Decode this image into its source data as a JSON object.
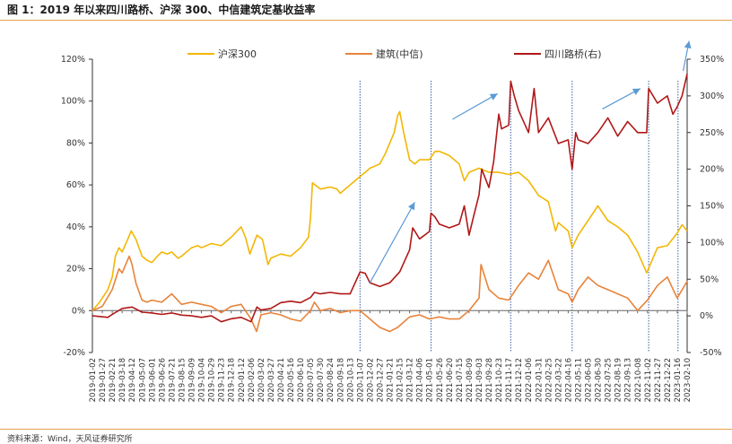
{
  "title": "图 1：2019 年以来四川路桥、沪深 300、中信建筑定基收益率",
  "source": "资料来源：Wind，天风证券研究所",
  "chart_data": {
    "type": "line",
    "title": "图 1：2019 年以来四川路桥、沪深 300、中信建筑定基收益率",
    "legend_position": "top",
    "grid": false,
    "y_left": {
      "ticks": [
        "-20%",
        "0%",
        "20%",
        "40%",
        "60%",
        "80%",
        "100%",
        "120%"
      ],
      "range": [
        -20,
        120
      ],
      "unit": "%"
    },
    "y_right": {
      "ticks": [
        "-50%",
        "0%",
        "50%",
        "100%",
        "150%",
        "200%",
        "250%",
        "300%",
        "350%"
      ],
      "range": [
        -50,
        350
      ],
      "unit": "%"
    },
    "x_labels": [
      "2019-01-02",
      "2019-01-27",
      "2019-02-21",
      "2019-03-18",
      "2019-04-12",
      "2019-05-07",
      "2019-06-01",
      "2019-06-26",
      "2019-07-21",
      "2019-08-15",
      "2019-09-09",
      "2019-10-04",
      "2019-10-29",
      "2019-11-23",
      "2019-12-18",
      "2020-01-12",
      "2020-02-06",
      "2020-03-02",
      "2020-03-27",
      "2020-04-21",
      "2020-05-16",
      "2020-06-10",
      "2020-07-05",
      "2020-07-30",
      "2020-08-24",
      "2020-09-18",
      "2020-10-13",
      "2020-11-07",
      "2020-12-02",
      "2020-12-27",
      "2021-01-21",
      "2021-02-15",
      "2021-03-12",
      "2021-04-06",
      "2021-05-01",
      "2021-05-26",
      "2021-06-20",
      "2021-07-15",
      "2021-08-09",
      "2021-09-03",
      "2021-09-28",
      "2021-10-23",
      "2021-11-17",
      "2021-12-12",
      "2022-01-06",
      "2022-01-31",
      "2022-02-25",
      "2022-03-22",
      "2022-04-16",
      "2022-05-11",
      "2022-06-05",
      "2022-06-30",
      "2022-07-25",
      "2022-08-19",
      "2022-09-13",
      "2022-10-08",
      "2022-11-02",
      "2022-11-27",
      "2022-12-22",
      "2023-01-16",
      "2023-02-10"
    ],
    "vlines": [
      "2020-11-07",
      "2021-05-05",
      "2021-11-22",
      "2022-04-26",
      "2022-11-05",
      "2023-01-18"
    ],
    "series": [
      {
        "name": "沪深300",
        "axis": "left",
        "color": "#f2b705",
        "points": [
          [
            "2019-01-02",
            0
          ],
          [
            "2019-01-20",
            4
          ],
          [
            "2019-02-10",
            10
          ],
          [
            "2019-02-21",
            16
          ],
          [
            "2019-03-01",
            26
          ],
          [
            "2019-03-10",
            30
          ],
          [
            "2019-03-18",
            28
          ],
          [
            "2019-04-01",
            34
          ],
          [
            "2019-04-10",
            38
          ],
          [
            "2019-04-22",
            34
          ],
          [
            "2019-05-07",
            26
          ],
          [
            "2019-05-20",
            24
          ],
          [
            "2019-06-01",
            23
          ],
          [
            "2019-06-15",
            26
          ],
          [
            "2019-06-26",
            28
          ],
          [
            "2019-07-10",
            27
          ],
          [
            "2019-07-21",
            28
          ],
          [
            "2019-08-06",
            25
          ],
          [
            "2019-08-15",
            26
          ],
          [
            "2019-09-09",
            30
          ],
          [
            "2019-09-25",
            31
          ],
          [
            "2019-10-04",
            30
          ],
          [
            "2019-10-29",
            32
          ],
          [
            "2019-11-23",
            31
          ],
          [
            "2019-12-18",
            35
          ],
          [
            "2020-01-12",
            40
          ],
          [
            "2020-01-23",
            35
          ],
          [
            "2020-02-03",
            27
          ],
          [
            "2020-02-21",
            36
          ],
          [
            "2020-03-06",
            34
          ],
          [
            "2020-03-20",
            22
          ],
          [
            "2020-03-27",
            25
          ],
          [
            "2020-04-21",
            27
          ],
          [
            "2020-05-16",
            26
          ],
          [
            "2020-06-10",
            30
          ],
          [
            "2020-06-30",
            35
          ],
          [
            "2020-07-05",
            44
          ],
          [
            "2020-07-10",
            61
          ],
          [
            "2020-07-30",
            58
          ],
          [
            "2020-08-24",
            59
          ],
          [
            "2020-09-10",
            58
          ],
          [
            "2020-09-18",
            56
          ],
          [
            "2020-10-13",
            60
          ],
          [
            "2020-11-07",
            64
          ],
          [
            "2020-11-20",
            66
          ],
          [
            "2020-12-02",
            68
          ],
          [
            "2020-12-27",
            70
          ],
          [
            "2021-01-10",
            75
          ],
          [
            "2021-01-21",
            80
          ],
          [
            "2021-02-01",
            85
          ],
          [
            "2021-02-10",
            93
          ],
          [
            "2021-02-15",
            95
          ],
          [
            "2021-02-25",
            85
          ],
          [
            "2021-03-12",
            72
          ],
          [
            "2021-03-25",
            70
          ],
          [
            "2021-04-06",
            72
          ],
          [
            "2021-05-01",
            72
          ],
          [
            "2021-05-15",
            76
          ],
          [
            "2021-05-26",
            76
          ],
          [
            "2021-06-20",
            74
          ],
          [
            "2021-07-15",
            70
          ],
          [
            "2021-07-28",
            62
          ],
          [
            "2021-08-09",
            66
          ],
          [
            "2021-09-03",
            68
          ],
          [
            "2021-09-28",
            66
          ],
          [
            "2021-10-23",
            66
          ],
          [
            "2021-11-17",
            65
          ],
          [
            "2021-12-12",
            66
          ],
          [
            "2022-01-06",
            62
          ],
          [
            "2022-01-31",
            55
          ],
          [
            "2022-02-25",
            52
          ],
          [
            "2022-03-15",
            38
          ],
          [
            "2022-03-22",
            42
          ],
          [
            "2022-04-16",
            38
          ],
          [
            "2022-04-26",
            30
          ],
          [
            "2022-05-11",
            36
          ],
          [
            "2022-06-05",
            43
          ],
          [
            "2022-06-30",
            50
          ],
          [
            "2022-07-25",
            43
          ],
          [
            "2022-08-19",
            40
          ],
          [
            "2022-09-13",
            36
          ],
          [
            "2022-10-08",
            28
          ],
          [
            "2022-10-31",
            18
          ],
          [
            "2022-11-27",
            30
          ],
          [
            "2022-12-22",
            31
          ],
          [
            "2023-01-16",
            37
          ],
          [
            "2023-01-28",
            41
          ],
          [
            "2023-02-10",
            38
          ]
        ]
      },
      {
        "name": "建筑(中信)",
        "axis": "left",
        "color": "#e8833a",
        "points": [
          [
            "2019-01-02",
            0
          ],
          [
            "2019-01-27",
            2
          ],
          [
            "2019-02-21",
            10
          ],
          [
            "2019-03-10",
            20
          ],
          [
            "2019-03-18",
            18
          ],
          [
            "2019-04-05",
            26
          ],
          [
            "2019-04-12",
            22
          ],
          [
            "2019-04-22",
            13
          ],
          [
            "2019-05-07",
            5
          ],
          [
            "2019-05-20",
            4
          ],
          [
            "2019-06-01",
            5
          ],
          [
            "2019-06-26",
            4
          ],
          [
            "2019-07-21",
            8
          ],
          [
            "2019-08-15",
            3
          ],
          [
            "2019-09-09",
            4
          ],
          [
            "2019-10-04",
            3
          ],
          [
            "2019-10-29",
            2
          ],
          [
            "2019-11-23",
            -1
          ],
          [
            "2019-12-18",
            2
          ],
          [
            "2020-01-12",
            3
          ],
          [
            "2020-02-06",
            -4
          ],
          [
            "2020-02-20",
            -10
          ],
          [
            "2020-03-02",
            -2
          ],
          [
            "2020-03-27",
            -1
          ],
          [
            "2020-04-21",
            -2
          ],
          [
            "2020-05-16",
            -4
          ],
          [
            "2020-06-10",
            -5
          ],
          [
            "2020-07-05",
            0
          ],
          [
            "2020-07-15",
            4
          ],
          [
            "2020-07-30",
            0
          ],
          [
            "2020-08-24",
            1
          ],
          [
            "2020-09-18",
            -1
          ],
          [
            "2020-10-13",
            0
          ],
          [
            "2020-11-07",
            0
          ],
          [
            "2020-12-02",
            -4
          ],
          [
            "2020-12-27",
            -8
          ],
          [
            "2021-01-21",
            -10
          ],
          [
            "2021-02-10",
            -8
          ],
          [
            "2021-03-12",
            -3
          ],
          [
            "2021-04-06",
            -2
          ],
          [
            "2021-05-01",
            -4
          ],
          [
            "2021-05-26",
            -3
          ],
          [
            "2021-06-20",
            -4
          ],
          [
            "2021-07-15",
            -4
          ],
          [
            "2021-08-09",
            0
          ],
          [
            "2021-09-03",
            6
          ],
          [
            "2021-09-08",
            22
          ],
          [
            "2021-09-28",
            10
          ],
          [
            "2021-10-23",
            6
          ],
          [
            "2021-11-17",
            5
          ],
          [
            "2021-12-12",
            12
          ],
          [
            "2022-01-06",
            18
          ],
          [
            "2022-01-31",
            15
          ],
          [
            "2022-02-25",
            24
          ],
          [
            "2022-03-22",
            10
          ],
          [
            "2022-04-16",
            8
          ],
          [
            "2022-04-26",
            4
          ],
          [
            "2022-05-11",
            10
          ],
          [
            "2022-06-05",
            16
          ],
          [
            "2022-06-30",
            12
          ],
          [
            "2022-07-25",
            10
          ],
          [
            "2022-08-19",
            8
          ],
          [
            "2022-09-13",
            6
          ],
          [
            "2022-10-08",
            0
          ],
          [
            "2022-11-02",
            5
          ],
          [
            "2022-11-27",
            12
          ],
          [
            "2022-12-22",
            16
          ],
          [
            "2023-01-16",
            6
          ],
          [
            "2023-02-10",
            14
          ]
        ]
      },
      {
        "name": "四川路桥(右)",
        "axis": "right",
        "color": "#b01818",
        "points": [
          [
            "2019-01-02",
            0
          ],
          [
            "2019-02-10",
            -2
          ],
          [
            "2019-02-21",
            2
          ],
          [
            "2019-03-18",
            10
          ],
          [
            "2019-04-12",
            12
          ],
          [
            "2019-05-07",
            5
          ],
          [
            "2019-06-01",
            4
          ],
          [
            "2019-06-26",
            2
          ],
          [
            "2019-07-21",
            4
          ],
          [
            "2019-08-15",
            1
          ],
          [
            "2019-09-09",
            0
          ],
          [
            "2019-10-04",
            -2
          ],
          [
            "2019-10-29",
            0
          ],
          [
            "2019-11-23",
            -8
          ],
          [
            "2019-12-18",
            -4
          ],
          [
            "2020-01-12",
            -2
          ],
          [
            "2020-02-06",
            -8
          ],
          [
            "2020-02-21",
            12
          ],
          [
            "2020-03-02",
            8
          ],
          [
            "2020-03-27",
            10
          ],
          [
            "2020-04-21",
            18
          ],
          [
            "2020-05-16",
            20
          ],
          [
            "2020-06-10",
            18
          ],
          [
            "2020-07-05",
            25
          ],
          [
            "2020-07-15",
            32
          ],
          [
            "2020-07-30",
            30
          ],
          [
            "2020-08-24",
            32
          ],
          [
            "2020-09-18",
            30
          ],
          [
            "2020-10-13",
            30
          ],
          [
            "2020-11-07",
            60
          ],
          [
            "2020-11-20",
            58
          ],
          [
            "2020-12-02",
            45
          ],
          [
            "2020-12-27",
            40
          ],
          [
            "2021-01-21",
            45
          ],
          [
            "2021-02-15",
            60
          ],
          [
            "2021-03-12",
            90
          ],
          [
            "2021-03-20",
            120
          ],
          [
            "2021-04-06",
            105
          ],
          [
            "2021-05-01",
            115
          ],
          [
            "2021-05-05",
            140
          ],
          [
            "2021-05-15",
            135
          ],
          [
            "2021-05-26",
            125
          ],
          [
            "2021-06-20",
            120
          ],
          [
            "2021-07-15",
            125
          ],
          [
            "2021-07-28",
            150
          ],
          [
            "2021-08-09",
            110
          ],
          [
            "2021-08-20",
            135
          ],
          [
            "2021-09-03",
            165
          ],
          [
            "2021-09-10",
            200
          ],
          [
            "2021-09-28",
            175
          ],
          [
            "2021-10-10",
            210
          ],
          [
            "2021-10-23",
            275
          ],
          [
            "2021-10-30",
            255
          ],
          [
            "2021-11-17",
            260
          ],
          [
            "2021-11-22",
            320
          ],
          [
            "2021-12-01",
            300
          ],
          [
            "2021-12-12",
            280
          ],
          [
            "2022-01-06",
            250
          ],
          [
            "2022-01-20",
            310
          ],
          [
            "2022-01-31",
            250
          ],
          [
            "2022-02-25",
            270
          ],
          [
            "2022-03-22",
            235
          ],
          [
            "2022-04-16",
            240
          ],
          [
            "2022-04-26",
            200
          ],
          [
            "2022-05-05",
            250
          ],
          [
            "2022-05-11",
            240
          ],
          [
            "2022-06-05",
            235
          ],
          [
            "2022-06-30",
            250
          ],
          [
            "2022-07-25",
            270
          ],
          [
            "2022-08-19",
            245
          ],
          [
            "2022-09-13",
            265
          ],
          [
            "2022-10-08",
            250
          ],
          [
            "2022-10-31",
            250
          ],
          [
            "2022-11-05",
            310
          ],
          [
            "2022-11-27",
            290
          ],
          [
            "2022-12-22",
            300
          ],
          [
            "2023-01-05",
            275
          ],
          [
            "2023-01-16",
            285
          ],
          [
            "2023-01-28",
            300
          ],
          [
            "2023-02-10",
            330
          ]
        ]
      }
    ],
    "annotations": [
      {
        "type": "arrow",
        "color": "#5b9bd5",
        "from": [
          "2020-12-02",
          45
        ],
        "to": [
          "2021-03-25",
          155
        ],
        "axis": "right"
      },
      {
        "type": "arrow",
        "color": "#5b9bd5",
        "from": [
          "2021-06-28",
          268
        ],
        "to": [
          "2021-10-20",
          303
        ],
        "axis": "right"
      },
      {
        "type": "arrow",
        "color": "#5b9bd5",
        "from": [
          "2022-07-11",
          282
        ],
        "to": [
          "2022-10-15",
          310
        ],
        "axis": "right"
      },
      {
        "type": "arrow",
        "color": "#5b9bd5",
        "from": [
          "2023-01-31",
          334
        ],
        "to": [
          "2023-02-15",
          375
        ],
        "axis": "right"
      }
    ]
  }
}
